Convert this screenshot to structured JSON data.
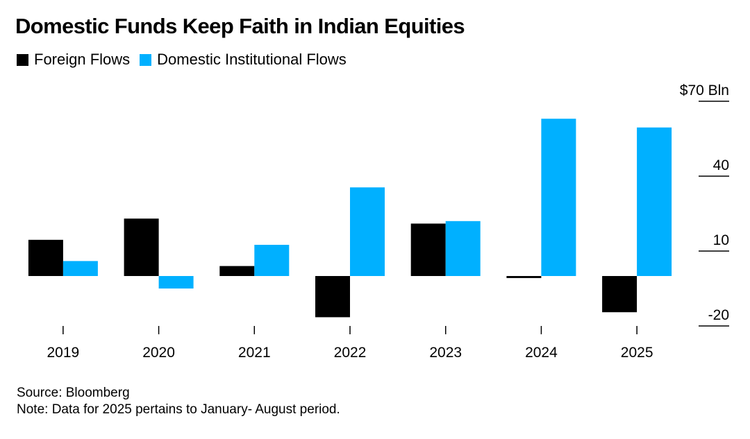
{
  "title": "Domestic Funds Keep Faith in Indian Equities",
  "source": "Source: Bloomberg",
  "note": "Note: Data for 2025 pertains to January- August period.",
  "colors": {
    "foreign": "#000000",
    "domestic": "#00b0ff",
    "axis": "#000000"
  },
  "legend": [
    {
      "name": "Foreign Flows",
      "color": "#000000"
    },
    {
      "name": "Domestic Institutional Flows",
      "color": "#00b0ff"
    }
  ],
  "chart_data": {
    "type": "bar",
    "categories": [
      "2019",
      "2020",
      "2021",
      "2022",
      "2023",
      "2024",
      "2025"
    ],
    "series": [
      {
        "name": "Foreign Flows",
        "values": [
          14.5,
          23.0,
          4.0,
          -16.5,
          21.0,
          -0.8,
          -14.5
        ]
      },
      {
        "name": "Domestic Institutional Flows",
        "values": [
          6.0,
          -5.0,
          12.5,
          35.5,
          22.0,
          63.0,
          59.5
        ]
      }
    ],
    "yticks": [
      70,
      40,
      10,
      -20
    ],
    "ytick_labels": [
      "$70 Bln",
      "40",
      "10",
      "-20"
    ],
    "ylim": [
      -20,
      70
    ],
    "y_axis_position": "right",
    "legend_position": "top-left",
    "grid": false
  }
}
